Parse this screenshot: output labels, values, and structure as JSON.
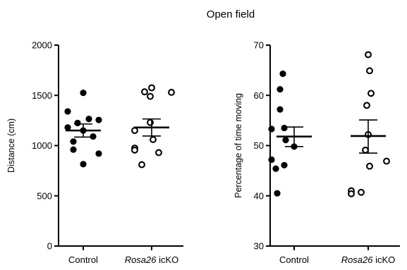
{
  "figure_title": "Open field",
  "colors": {
    "ink": "#000000",
    "background": "#ffffff"
  },
  "chart_data": [
    {
      "type": "scatter",
      "subtype": "dot plot with mean and SEM",
      "ylabel": "Distance (cm)",
      "ylim": [
        0,
        2000
      ],
      "yticks": [
        "0",
        "500",
        "1000",
        "1500",
        "2000"
      ],
      "categories": [
        {
          "plain": "Control",
          "italic": "",
          "suffix": ""
        },
        {
          "plain": "",
          "italic": "Rosa26",
          "suffix": " icKO"
        }
      ],
      "series": [
        {
          "marker": "filled-circle",
          "values": [
            1525,
            1340,
            1265,
            1255,
            1225,
            1180,
            1150,
            1090,
            1040,
            960,
            920,
            815
          ],
          "mean": 1150,
          "sem_upper": 1215,
          "sem_lower": 1085
        },
        {
          "marker": "open-circle",
          "values": [
            1575,
            1530,
            1535,
            1490,
            1230,
            1150,
            1060,
            975,
            955,
            930,
            810
          ],
          "mean": 1180,
          "sem_upper": 1265,
          "sem_lower": 1095
        }
      ]
    },
    {
      "type": "scatter",
      "subtype": "dot plot with mean and SEM",
      "ylabel": "Percentage of time moving",
      "ylim": [
        30,
        70
      ],
      "yticks": [
        "30",
        "40",
        "50",
        "60",
        "70"
      ],
      "categories": [
        {
          "plain": "Control",
          "italic": "",
          "suffix": ""
        },
        {
          "plain": "",
          "italic": "Rosa26",
          "suffix": " icKO"
        }
      ],
      "series": [
        {
          "marker": "filled-circle",
          "values": [
            64.3,
            61.2,
            57.2,
            53.5,
            53.3,
            51.1,
            49.8,
            47.2,
            45.4,
            46.1,
            40.5
          ],
          "mean": 51.8,
          "sem_upper": 53.7,
          "sem_lower": 49.8
        },
        {
          "marker": "open-circle",
          "values": [
            68.1,
            64.9,
            60.4,
            58.0,
            52.2,
            49.1,
            46.9,
            45.9,
            41.0,
            40.7,
            40.4
          ],
          "mean": 51.9,
          "sem_upper": 55.1,
          "sem_lower": 48.5
        }
      ]
    }
  ]
}
